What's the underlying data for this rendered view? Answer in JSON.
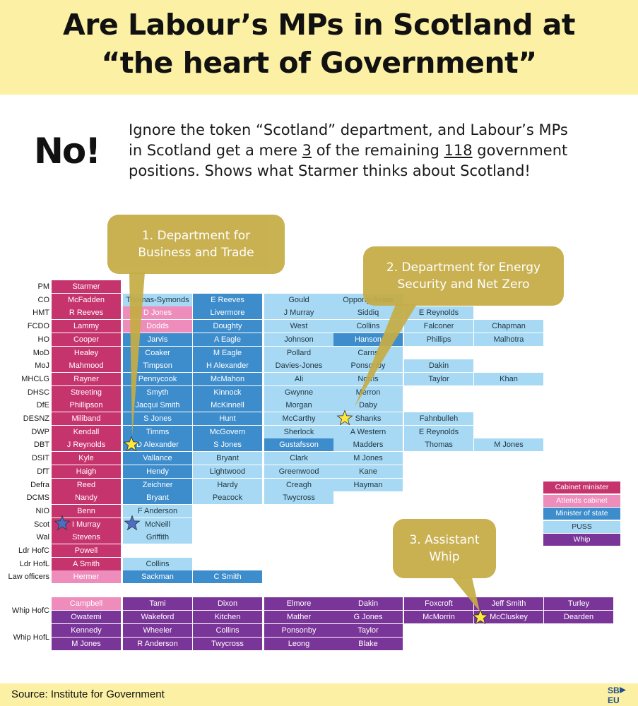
{
  "header": {
    "title_line1": "Are Labour’s MPs in Scotland at",
    "title_line2": "“the heart of Government”"
  },
  "verdict": {
    "word": "No!",
    "line1": "Ignore the token “Scotland” department, and Labour’s MPs",
    "line2_a": "in Scotland get a mere ",
    "line2_b": "3",
    "line2_c": " of the remaining ",
    "line2_d": "118",
    "line2_e": " government",
    "line3": "positions.  Shows what Starmer thinks about Scotland!"
  },
  "callouts": [
    {
      "line1": "1. Department for",
      "line2": "Business and Trade"
    },
    {
      "line1": "2. Department for Energy",
      "line2": "Security and Net Zero"
    },
    {
      "line1": "3. Assistant",
      "line2": "Whip"
    }
  ],
  "colors": {
    "cabinet": "#c6346e",
    "attends": "#ee8cbc",
    "minister_of_state": "#3d8ccb",
    "puss": "#a8d9f4",
    "whip": "#7a3598",
    "callout": "#c5ac45",
    "header_bg": "#fbf0a4"
  },
  "legend": [
    "Cabinet minister",
    "Attends cabinet",
    "Minister of state",
    "PUSS",
    "Whip"
  ],
  "departments": [
    {
      "label": "PM",
      "cells": [
        [
          "Starmer",
          "cab"
        ]
      ]
    },
    {
      "label": "CO",
      "cells": [
        [
          "McFadden",
          "cab"
        ],
        [
          "Thomas-Symonds",
          "puss"
        ],
        [
          "E Reeves",
          "mos"
        ],
        [
          "Gould",
          "puss"
        ],
        [
          "Oppong-Asare",
          "puss"
        ]
      ]
    },
    {
      "label": "HMT",
      "cells": [
        [
          "R Reeves",
          "cab"
        ],
        [
          "D Jones",
          "att"
        ],
        [
          "Livermore",
          "mos"
        ],
        [
          "J Murray",
          "puss"
        ],
        [
          "Siddiq",
          "puss"
        ],
        [
          "E Reynolds",
          "puss"
        ]
      ]
    },
    {
      "label": "FCDO",
      "cells": [
        [
          "Lammy",
          "cab"
        ],
        [
          "Dodds",
          "att"
        ],
        [
          "Doughty",
          "mos"
        ],
        [
          "West",
          "puss"
        ],
        [
          "Collins",
          "puss"
        ],
        [
          "Falconer",
          "puss"
        ],
        [
          "Chapman",
          "puss"
        ]
      ]
    },
    {
      "label": "HO",
      "cells": [
        [
          "Cooper",
          "cab"
        ],
        [
          "Jarvis",
          "mos"
        ],
        [
          "A Eagle",
          "mos"
        ],
        [
          "Johnson",
          "puss"
        ],
        [
          "Hanson",
          "mos"
        ],
        [
          "Phillips",
          "puss"
        ],
        [
          "Malhotra",
          "puss"
        ]
      ]
    },
    {
      "label": "MoD",
      "cells": [
        [
          "Healey",
          "cab"
        ],
        [
          "Coaker",
          "mos"
        ],
        [
          "M Eagle",
          "mos"
        ],
        [
          "Pollard",
          "puss"
        ],
        [
          "Carns",
          "puss"
        ]
      ]
    },
    {
      "label": "MoJ",
      "cells": [
        [
          "Mahmood",
          "cab"
        ],
        [
          "Timpson",
          "mos"
        ],
        [
          "H Alexander",
          "mos"
        ],
        [
          "Davies-Jones",
          "puss"
        ],
        [
          "Ponsonby",
          "puss"
        ],
        [
          "Dakin",
          "puss"
        ]
      ]
    },
    {
      "label": "MHCLG",
      "cells": [
        [
          "Rayner",
          "cab"
        ],
        [
          "Pennycook",
          "mos"
        ],
        [
          "McMahon",
          "mos"
        ],
        [
          "Ali",
          "puss"
        ],
        [
          "Norris",
          "puss"
        ],
        [
          "Taylor",
          "puss"
        ],
        [
          "Khan",
          "puss"
        ]
      ]
    },
    {
      "label": "DHSC",
      "cells": [
        [
          "Streeting",
          "cab"
        ],
        [
          "Smyth",
          "mos"
        ],
        [
          "Kinnock",
          "mos"
        ],
        [
          "Gwynne",
          "puss"
        ],
        [
          "Merron",
          "puss"
        ]
      ]
    },
    {
      "label": "DfE",
      "cells": [
        [
          "Phillipson",
          "cab"
        ],
        [
          "Jacqui Smith",
          "mos"
        ],
        [
          "McKinnell",
          "mos"
        ],
        [
          "Morgan",
          "puss"
        ],
        [
          "Daby",
          "puss"
        ]
      ]
    },
    {
      "label": "DESNZ",
      "cells": [
        [
          "Miliband",
          "cab"
        ],
        [
          "S Jones",
          "mos"
        ],
        [
          "Hunt",
          "mos"
        ],
        [
          "McCarthy",
          "puss"
        ],
        [
          "Shanks",
          "puss"
        ],
        [
          "Fahnbulleh",
          "puss"
        ]
      ]
    },
    {
      "label": "DWP",
      "cells": [
        [
          "Kendall",
          "cab"
        ],
        [
          "Timms",
          "mos"
        ],
        [
          "McGovern",
          "mos"
        ],
        [
          "Sherlock",
          "puss"
        ],
        [
          "A Western",
          "puss"
        ],
        [
          "E Reynolds",
          "puss"
        ]
      ]
    },
    {
      "label": "DBT",
      "cells": [
        [
          "J Reynolds",
          "cab"
        ],
        [
          "D Alexander",
          "mos"
        ],
        [
          "S Jones",
          "mos"
        ],
        [
          "Gustafsson",
          "mos"
        ],
        [
          "Madders",
          "puss"
        ],
        [
          "Thomas",
          "puss"
        ],
        [
          "M Jones",
          "puss"
        ]
      ]
    },
    {
      "label": "DSIT",
      "cells": [
        [
          "Kyle",
          "cab"
        ],
        [
          "Vallance",
          "mos"
        ],
        [
          "Bryant",
          "puss"
        ],
        [
          "Clark",
          "puss"
        ],
        [
          "M Jones",
          "puss"
        ]
      ]
    },
    {
      "label": "DfT",
      "cells": [
        [
          "Haigh",
          "cab"
        ],
        [
          "Hendy",
          "mos"
        ],
        [
          "Lightwood",
          "puss"
        ],
        [
          "Greenwood",
          "puss"
        ],
        [
          "Kane",
          "puss"
        ]
      ]
    },
    {
      "label": "Defra",
      "cells": [
        [
          "Reed",
          "cab"
        ],
        [
          "Zeichner",
          "mos"
        ],
        [
          "Hardy",
          "puss"
        ],
        [
          "Creagh",
          "puss"
        ],
        [
          "Hayman",
          "puss"
        ]
      ]
    },
    {
      "label": "DCMS",
      "cells": [
        [
          "Nandy",
          "cab"
        ],
        [
          "Bryant",
          "mos"
        ],
        [
          "Peacock",
          "puss"
        ],
        [
          "Twycross",
          "puss"
        ]
      ]
    },
    {
      "label": "NIO",
      "cells": [
        [
          "Benn",
          "cab"
        ],
        [
          "F Anderson",
          "puss"
        ]
      ]
    },
    {
      "label": "Scot",
      "cells": [
        [
          "I Murray",
          "cab"
        ],
        [
          "McNeill",
          "puss"
        ]
      ]
    },
    {
      "label": "Wal",
      "cells": [
        [
          "Stevens",
          "cab"
        ],
        [
          "Griffith",
          "puss"
        ]
      ]
    },
    {
      "label": "Ldr HofC",
      "cells": [
        [
          "Powell",
          "cab"
        ]
      ]
    },
    {
      "label": "Ldr HofL",
      "cells": [
        [
          "A Smith",
          "cab"
        ],
        [
          "Collins",
          "puss"
        ]
      ]
    },
    {
      "label": "Law officers",
      "cells": [
        [
          "Hermer",
          "att"
        ],
        [
          "Sackman",
          "mos"
        ],
        [
          "C Smith",
          "mos"
        ]
      ]
    }
  ],
  "whips": [
    {
      "label": "Whip HofC",
      "rows": [
        [
          [
            "Campbell",
            "att"
          ],
          [
            "Tami",
            "whip"
          ],
          [
            "Dixon",
            "whip"
          ],
          [
            "Elmore",
            "whip"
          ],
          [
            "Dakin",
            "whip"
          ],
          [
            "Foxcroft",
            "whip"
          ],
          [
            "Jeff Smith",
            "whip"
          ],
          [
            "Turley",
            "whip"
          ]
        ],
        [
          [
            "Owatemi",
            "whip"
          ],
          [
            "Wakeford",
            "whip"
          ],
          [
            "Kitchen",
            "whip"
          ],
          [
            "Mather",
            "whip"
          ],
          [
            "G Jones",
            "whip"
          ],
          [
            "McMorrin",
            "whip"
          ],
          [
            "McCluskey",
            "whip"
          ],
          [
            "Dearden",
            "whip"
          ]
        ]
      ]
    },
    {
      "label": "Whip HofL",
      "rows": [
        [
          [
            "Kennedy",
            "whip"
          ],
          [
            "Wheeler",
            "whip"
          ],
          [
            "Collins",
            "whip"
          ],
          [
            "Ponsonby",
            "whip"
          ],
          [
            "Taylor",
            "whip"
          ]
        ],
        [
          [
            "M Jones",
            "whip"
          ],
          [
            "R Anderson",
            "whip"
          ],
          [
            "Twycross",
            "whip"
          ],
          [
            "Leong",
            "whip"
          ],
          [
            "Blake",
            "whip"
          ]
        ]
      ]
    }
  ],
  "footer": {
    "source": "Source: Institute for Government",
    "logo_top": "SB",
    "logo_bottom": "EU"
  }
}
